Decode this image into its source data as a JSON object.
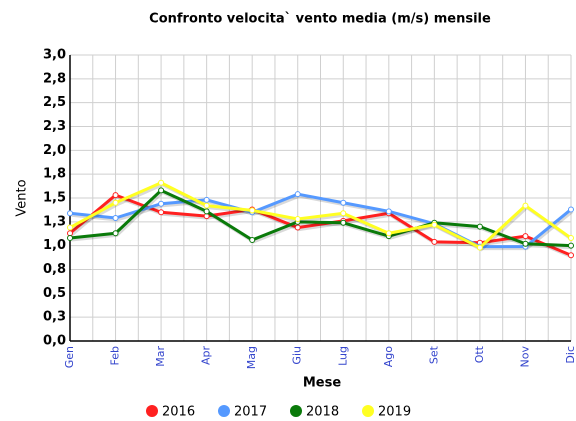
{
  "chart_data": {
    "type": "line",
    "title": "Confronto velocita` vento media (m/s) mensile",
    "x_label": "Mese",
    "y_label": "Vento",
    "categories": [
      "Gen",
      "Feb",
      "Mar",
      "Apr",
      "Mag",
      "Giu",
      "Lug",
      "Ago",
      "Set",
      "Ott",
      "Nov",
      "Dic"
    ],
    "series": [
      {
        "name": "2016",
        "color": "#ff2020",
        "values": [
          1.13,
          1.53,
          1.35,
          1.31,
          1.38,
          1.19,
          1.26,
          1.34,
          1.04,
          1.03,
          1.1,
          0.9
        ]
      },
      {
        "name": "2017",
        "color": "#5599ff",
        "values": [
          1.34,
          1.29,
          1.44,
          1.48,
          1.35,
          1.54,
          1.45,
          1.36,
          1.23,
          0.99,
          0.99,
          1.38
        ]
      },
      {
        "name": "2018",
        "color": "#0a7a0a",
        "values": [
          1.08,
          1.13,
          1.58,
          1.36,
          1.06,
          1.25,
          1.24,
          1.1,
          1.24,
          1.2,
          1.02,
          1.0
        ]
      },
      {
        "name": "2019",
        "color": "#ffff22",
        "values": [
          1.19,
          1.45,
          1.66,
          1.42,
          1.37,
          1.28,
          1.34,
          1.13,
          1.22,
          0.98,
          1.42,
          1.08
        ]
      }
    ],
    "ylim": [
      0,
      3
    ],
    "yticks": [
      {
        "value": 0,
        "label": "0,0"
      },
      {
        "value": 0.25,
        "label": "0,3"
      },
      {
        "value": 0.5,
        "label": "0,5"
      },
      {
        "value": 0.75,
        "label": "0,8"
      },
      {
        "value": 1,
        "label": "1,0"
      },
      {
        "value": 1.25,
        "label": "1,3"
      },
      {
        "value": 1.5,
        "label": "1,5"
      },
      {
        "value": 1.75,
        "label": "1,8"
      },
      {
        "value": 2,
        "label": "2,0"
      },
      {
        "value": 2.25,
        "label": "2,3"
      },
      {
        "value": 2.5,
        "label": "2,5"
      },
      {
        "value": 2.75,
        "label": "2,8"
      },
      {
        "value": 3,
        "label": "3,0"
      }
    ],
    "grid": true,
    "legend": "bottom"
  }
}
